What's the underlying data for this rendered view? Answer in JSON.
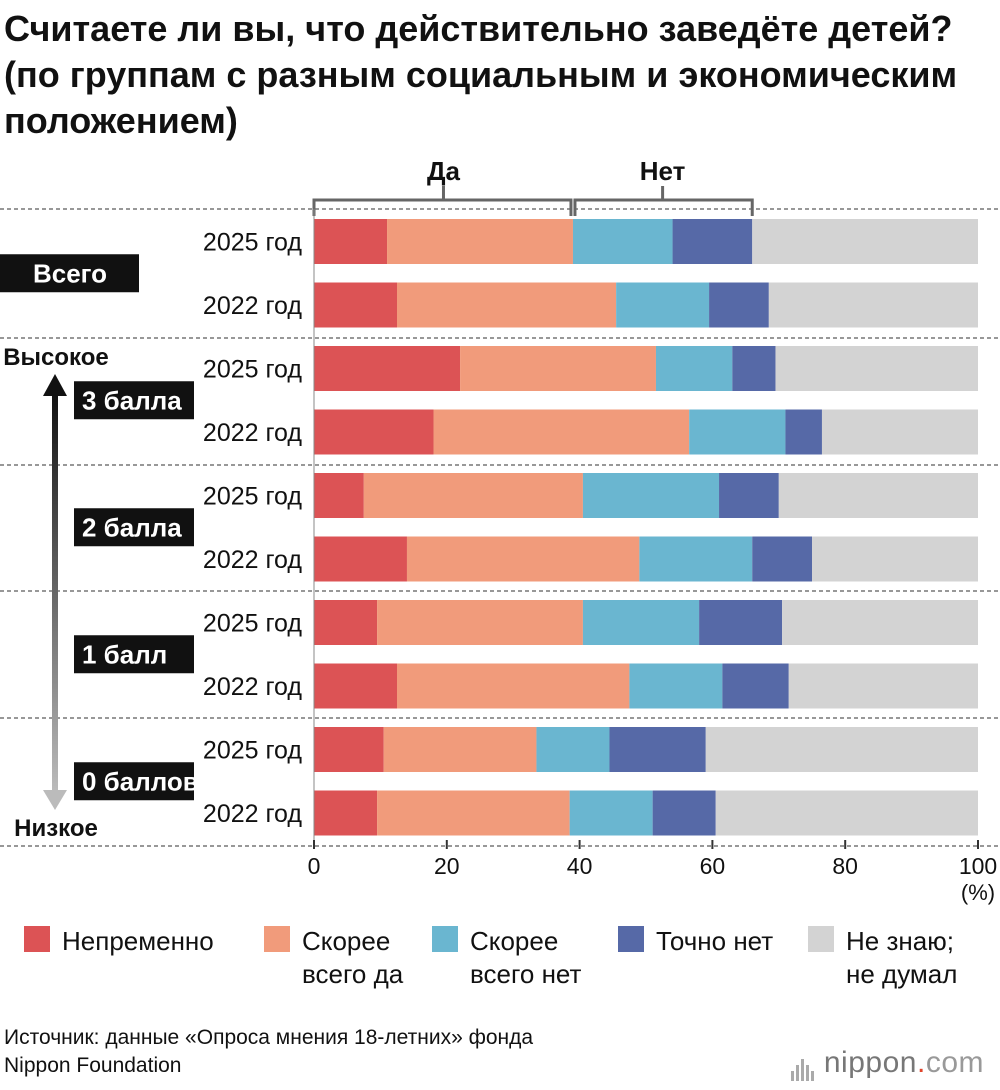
{
  "title": "Считаете ли вы, что действительно заведёте детей? (по группам с разным социальным и экономическим положением)",
  "source": {
    "line1": "Источник: данные «Опроса мнения 18-летних» фонда",
    "line2": "Nippon Foundation"
  },
  "logo": {
    "name": "nippon",
    "dot": ".",
    "tld": "com"
  },
  "colors": {
    "definitely_yes": "#dc5355",
    "probably_yes": "#f19b7b",
    "probably_no": "#6ab6d0",
    "definitely_no": "#5669a7",
    "dont_know": "#d3d3d3"
  },
  "chart_data": {
    "type": "bar",
    "orientation": "horizontal",
    "stacked": true,
    "title": "Считаете ли вы, что действительно заведёте детей? (по группам с разным социальным и экономическим положением)",
    "xlabel": "(%)",
    "xlim": [
      0,
      100
    ],
    "xticks": [
      "0",
      "20",
      "40",
      "60",
      "80",
      "100"
    ],
    "bracket_labels": {
      "yes": "Да",
      "no": "Нет"
    },
    "axis_arrow": {
      "top": "Высокое",
      "bottom": "Низкое"
    },
    "series": [
      {
        "name": "Непременно",
        "color_key": "definitely_yes"
      },
      {
        "name": "Скорее всего да",
        "color_key": "probably_yes"
      },
      {
        "name": "Скорее всего нет",
        "color_key": "probably_no"
      },
      {
        "name": "Точно нет",
        "color_key": "definitely_no"
      },
      {
        "name": "Не знаю; не думал",
        "color_key": "dont_know"
      }
    ],
    "legend": [
      {
        "lines": [
          "Непременно"
        ],
        "color_key": "definitely_yes"
      },
      {
        "lines": [
          "Скорее",
          "всего да"
        ],
        "color_key": "probably_yes"
      },
      {
        "lines": [
          "Скорее",
          "всего нет"
        ],
        "color_key": "probably_no"
      },
      {
        "lines": [
          "Точно нет"
        ],
        "color_key": "definitely_no"
      },
      {
        "lines": [
          "Не знаю;",
          "не думал"
        ],
        "color_key": "dont_know"
      }
    ],
    "groups": [
      {
        "label": "Всего",
        "bars": [
          {
            "year": "2025 год",
            "values": [
              11,
              28,
              15,
              12,
              34
            ]
          },
          {
            "year": "2022 год",
            "values": [
              12.5,
              33,
              14,
              9,
              31.5
            ]
          }
        ]
      },
      {
        "label": "3 балла",
        "bars": [
          {
            "year": "2025 год",
            "values": [
              22,
              29.5,
              11.5,
              6.5,
              30.5
            ]
          },
          {
            "year": "2022 год",
            "values": [
              18,
              38.5,
              14.5,
              5.5,
              23.5
            ]
          }
        ]
      },
      {
        "label": "2 балла",
        "bars": [
          {
            "year": "2025 год",
            "values": [
              7.5,
              33,
              20.5,
              9,
              30
            ]
          },
          {
            "year": "2022 год",
            "values": [
              14,
              35,
              17,
              9,
              25
            ]
          }
        ]
      },
      {
        "label": "1 балл",
        "bars": [
          {
            "year": "2025 год",
            "values": [
              9.5,
              31,
              17.5,
              12.5,
              29.5
            ]
          },
          {
            "year": "2022 год",
            "values": [
              12.5,
              35,
              14,
              10,
              28.5
            ]
          }
        ]
      },
      {
        "label": "0 баллов",
        "bars": [
          {
            "year": "2025 год",
            "values": [
              10.5,
              23,
              11,
              14.5,
              41
            ]
          },
          {
            "year": "2022 год",
            "values": [
              9.5,
              29,
              12.5,
              9.5,
              39.5
            ]
          }
        ]
      }
    ]
  }
}
